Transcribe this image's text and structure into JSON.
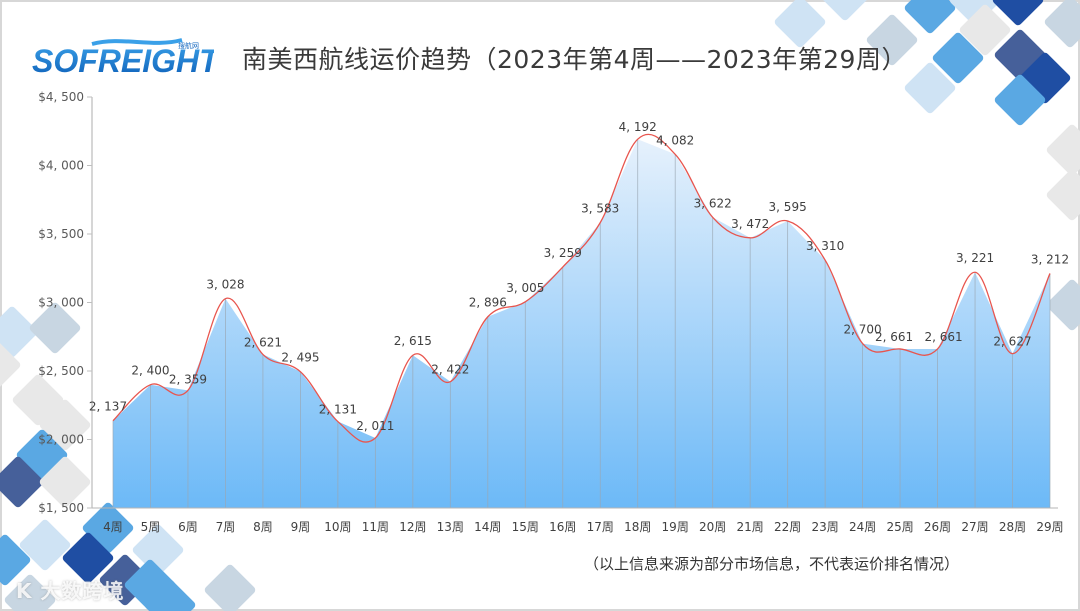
{
  "header": {
    "logo_text": "SOFREIGHT",
    "logo_subtext": "搜航网",
    "title": "南美西航线运价趋势（2023年第4周——2023年第29周）"
  },
  "footer": {
    "note": "（以上信息来源为部分市场信息，不代表运价排名情况）",
    "watermark": "大数跨境"
  },
  "colors": {
    "line": "#e8554e",
    "area_top": "#e4f0fc",
    "area_bottom": "#6cb8f6",
    "axis": "#bfbfbf",
    "deco_dark": "#1f4ea3",
    "deco_mid": "#5aa8e3",
    "deco_light": "#cfe3f4",
    "deco_gray": "#e8e8e8"
  },
  "chart_data": {
    "type": "area",
    "title": "南美西航线运价趋势（2023年第4周——2023年第29周）",
    "xlabel": "",
    "ylabel": "",
    "ylim": [
      1500,
      4500
    ],
    "yticks": [
      "$1,500",
      "$2,000",
      "$2,500",
      "$3,000",
      "$3,500",
      "$4,000",
      "$4,500"
    ],
    "ytick_values": [
      1500,
      2000,
      2500,
      3000,
      3500,
      4000,
      4500
    ],
    "categories": [
      "4周",
      "5周",
      "6周",
      "7周",
      "8周",
      "9周",
      "10周",
      "11周",
      "12周",
      "13周",
      "14周",
      "15周",
      "16周",
      "17周",
      "18周",
      "19周",
      "20周",
      "21周",
      "22周",
      "23周",
      "24周",
      "25周",
      "26周",
      "27周",
      "28周",
      "29周"
    ],
    "values": [
      2137,
      2400,
      2359,
      3028,
      2621,
      2495,
      2131,
      2011,
      2615,
      2422,
      2896,
      3005,
      3259,
      3583,
      4192,
      4082,
      3622,
      3472,
      3595,
      3310,
      2700,
      2661,
      2661,
      3221,
      2627,
      3212
    ],
    "value_labels": [
      "2, 137",
      "2, 400",
      "2, 359",
      "3, 028",
      "2, 621",
      "2, 495",
      "2, 131",
      "2, 011",
      "2, 615",
      "2, 422",
      "2, 896",
      "3, 005",
      "3, 259",
      "3, 583",
      "4, 192",
      "4, 082",
      "3, 622",
      "3, 472",
      "3, 595",
      "3, 310",
      "2, 700",
      "2, 661",
      "2, 661",
      "3, 221",
      "2, 627",
      "3, 212"
    ],
    "grid": false,
    "legend": null,
    "smooth_line": true
  }
}
